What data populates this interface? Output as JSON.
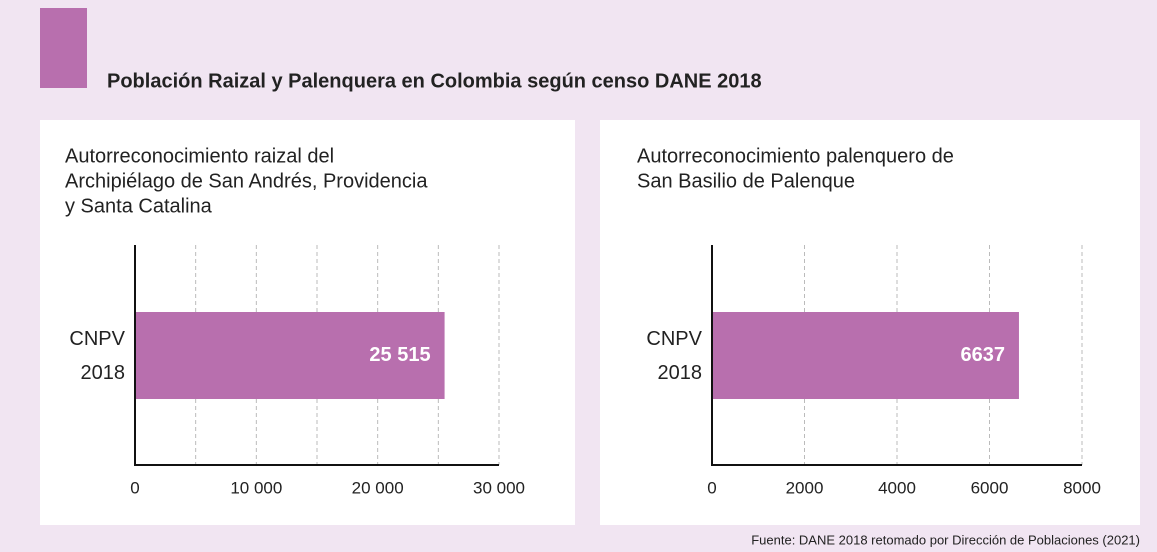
{
  "title": "Población Raizal y Palenquera en Colombia según censo DANE 2018",
  "source": "Fuente: DANE 2018 retomado por Dirección de Poblaciones (2021)",
  "chart_data": [
    {
      "type": "bar",
      "orientation": "horizontal",
      "title": [
        "Autorreconocimiento raizal del",
        "Archipiélago de San Andrés, Providencia",
        "y Santa Catalina"
      ],
      "categories": [
        "CNPV 2018"
      ],
      "values": [
        25515
      ],
      "value_labels": [
        "25 515"
      ],
      "color": "#b86fae",
      "xlim": [
        0,
        30000
      ],
      "xticks": [
        0,
        {
          "value": 10000,
          "label": "10 000"
        },
        {
          "value": 20000,
          "label": "20 000"
        },
        {
          "value": 30000,
          "label": "30 000"
        }
      ],
      "minor_xticks": [
        5000,
        15000,
        25000
      ],
      "grid": true
    },
    {
      "type": "bar",
      "orientation": "horizontal",
      "title": [
        "Autorreconocimiento palenquero de",
        "San Basilio de Palenque"
      ],
      "categories": [
        "CNPV 2018"
      ],
      "values": [
        6637
      ],
      "value_labels": [
        "6637"
      ],
      "color": "#b86fae",
      "xlim": [
        0,
        8000
      ],
      "xticks": [
        0,
        2000,
        4000,
        6000,
        8000
      ],
      "grid": true
    }
  ]
}
